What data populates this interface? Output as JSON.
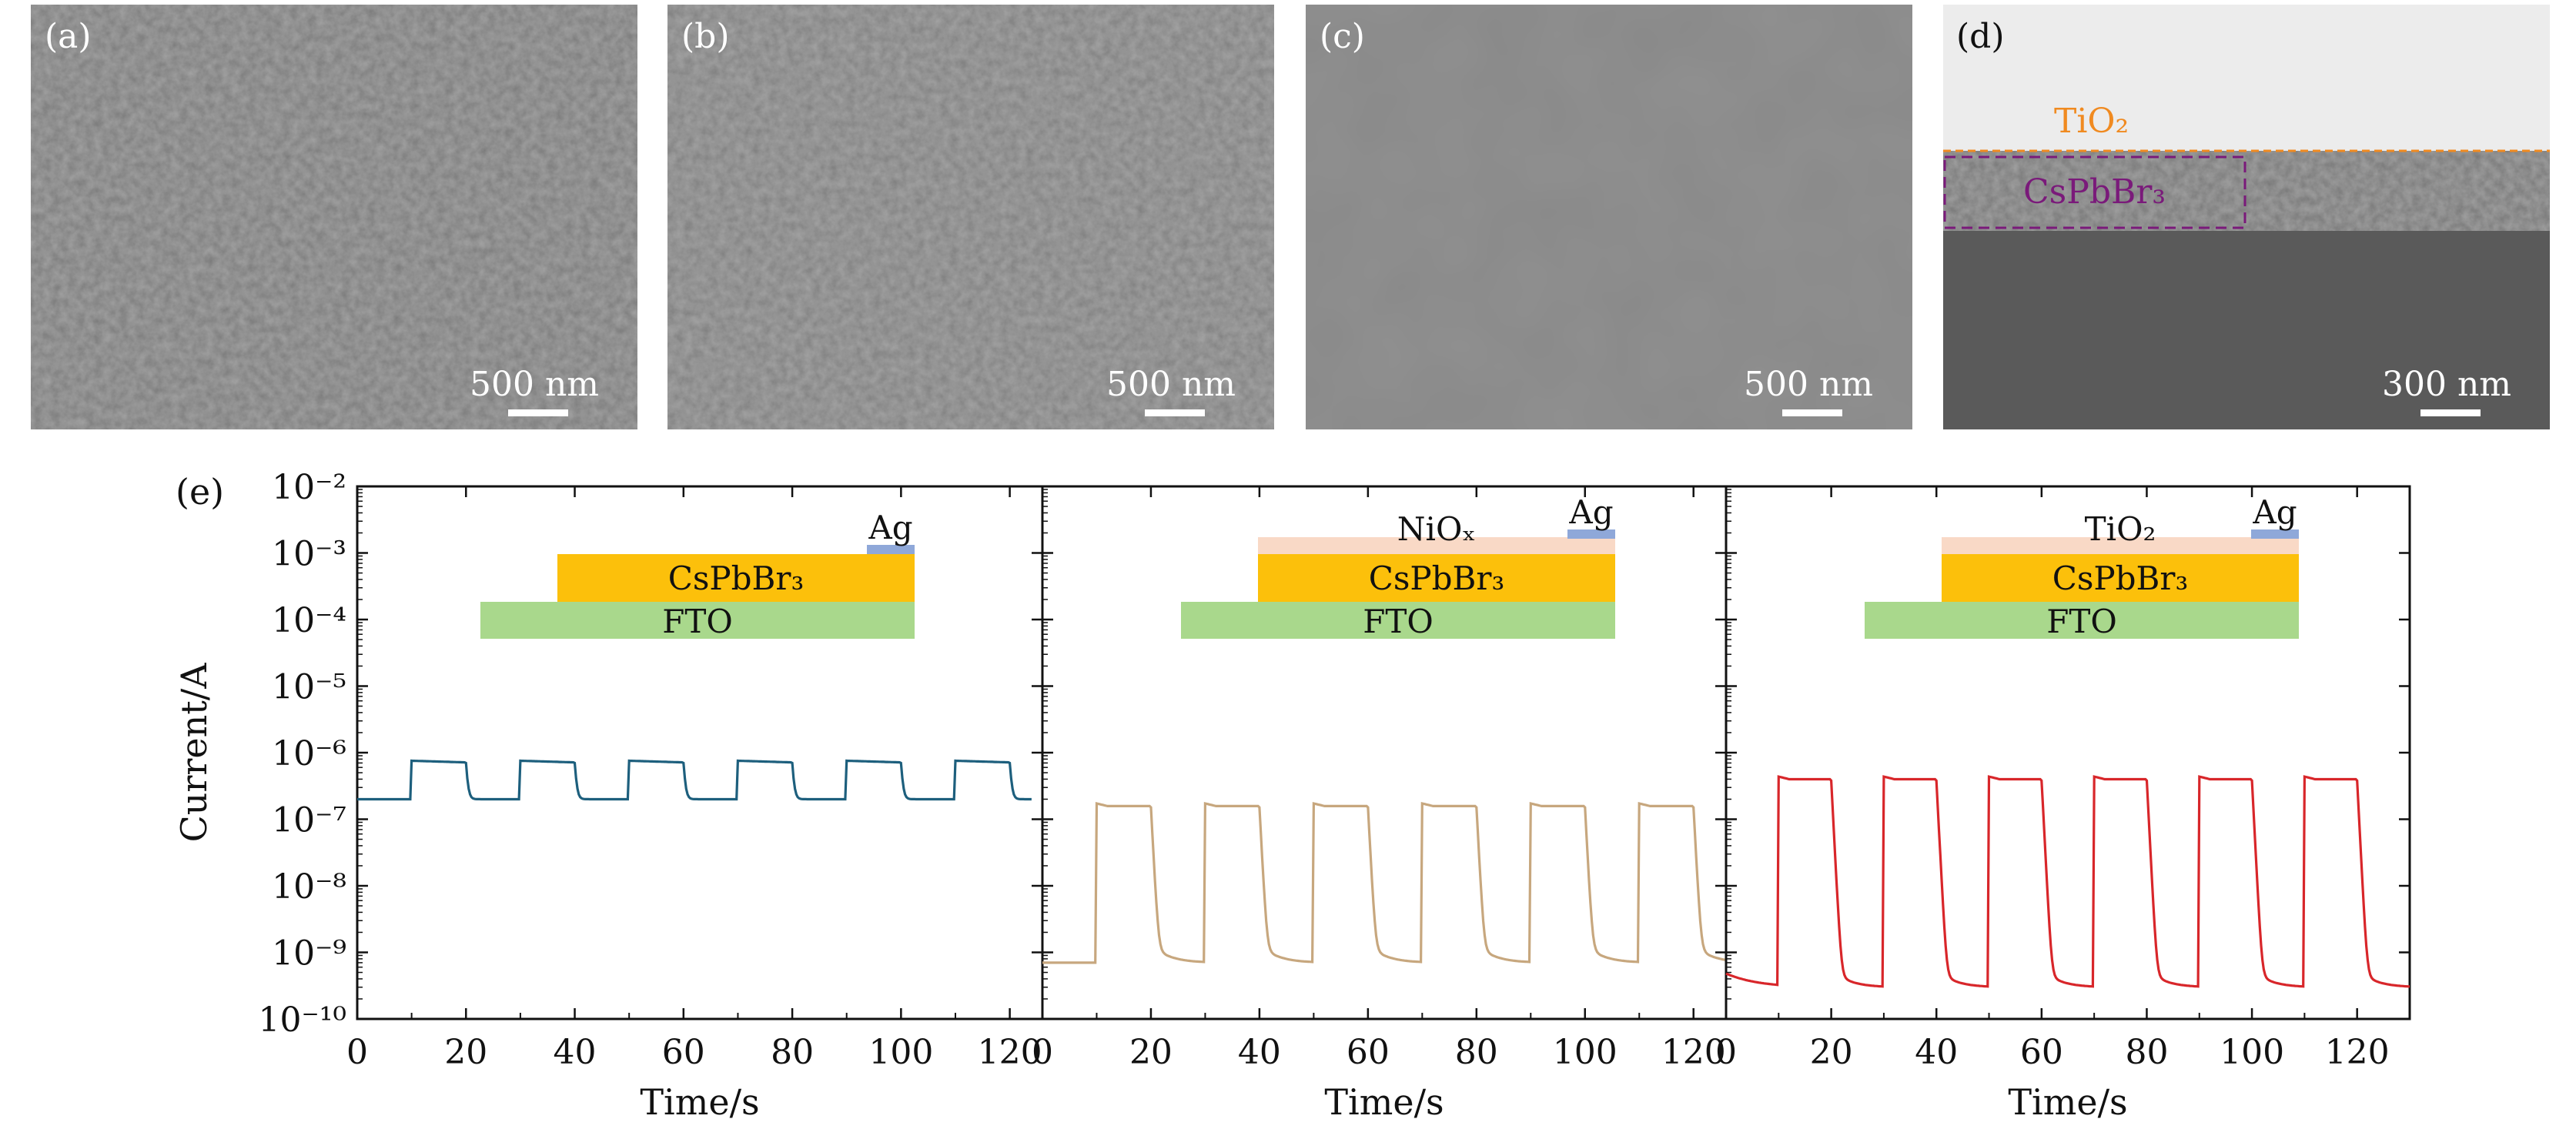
{
  "sem_panels": [
    {
      "label": "(a)",
      "scale": "500 nm"
    },
    {
      "label": "(b)",
      "scale": "500 nm"
    },
    {
      "label": "(c)",
      "scale": "500 nm"
    },
    {
      "label": "(d)",
      "scale": "300 nm",
      "layers": [
        "TiO₂",
        "CsPbBr₃"
      ]
    }
  ],
  "plot_panel_label": "(e)",
  "colors": {
    "trace_fto": "#1d5f7d",
    "trace_nio": "#c7a77e",
    "trace_tio2": "#d8262a",
    "fto_layer": "#a9d88c",
    "perovskite_layer": "#fcc00b",
    "nio_layer": "#f9d9c6",
    "ag_contact": "#8fa8d9",
    "tio2_label": "#f08a20",
    "cspbbr3_label": "#7a1a7a"
  },
  "chart_data": [
    {
      "type": "line",
      "xlabel": "Time/s",
      "ylabel": "Current/A",
      "yscale": "log",
      "ylim": [
        1e-10,
        0.01
      ],
      "xlim": [
        0,
        126
      ],
      "xticks": [
        0,
        20,
        40,
        60,
        80,
        100,
        120
      ],
      "yticks": [
        "10⁻¹⁰",
        "10⁻⁹",
        "10⁻⁸",
        "10⁻⁷",
        "10⁻⁶",
        "10⁻⁵",
        "10⁻⁴",
        "10⁻³",
        "10⁻²"
      ],
      "inset_layers": [
        "Ag",
        "CsPbBr₃",
        "FTO"
      ],
      "series": [
        {
          "name": "FTO/CsPbBr₃/Ag",
          "color": "#1d5f7d",
          "dark_current": 2e-07,
          "light_current": 7e-07,
          "on_times": [
            10,
            30,
            50,
            70,
            90,
            110
          ],
          "period_on": 10
        }
      ]
    },
    {
      "type": "line",
      "xlabel": "Time/s",
      "ylabel": "",
      "yscale": "log",
      "ylim": [
        1e-10,
        0.01
      ],
      "xlim": [
        0,
        126
      ],
      "xticks": [
        0,
        20,
        40,
        60,
        80,
        100,
        120
      ],
      "inset_layers": [
        "Ag",
        "NiOₓ",
        "CsPbBr₃",
        "FTO"
      ],
      "series": [
        {
          "name": "FTO/CsPbBr₃/NiOx/Ag",
          "color": "#c7a77e",
          "dark_current": 7e-10,
          "light_current": 1.5e-07,
          "on_times": [
            10,
            30,
            50,
            70,
            90,
            110
          ],
          "period_on": 10
        }
      ]
    },
    {
      "type": "line",
      "xlabel": "Time/s",
      "ylabel": "",
      "yscale": "log",
      "ylim": [
        1e-10,
        0.01
      ],
      "xlim": [
        0,
        130
      ],
      "xticks": [
        0,
        20,
        40,
        60,
        80,
        100,
        120
      ],
      "inset_layers": [
        "Ag",
        "TiO₂",
        "CsPbBr₃",
        "FTO"
      ],
      "series": [
        {
          "name": "FTO/CsPbBr₃/TiO₂/Ag",
          "color": "#d8262a",
          "dark_current": 3e-10,
          "light_current": 3.8e-07,
          "on_times": [
            10,
            30,
            50,
            70,
            90,
            110
          ],
          "period_on": 10
        }
      ]
    }
  ]
}
